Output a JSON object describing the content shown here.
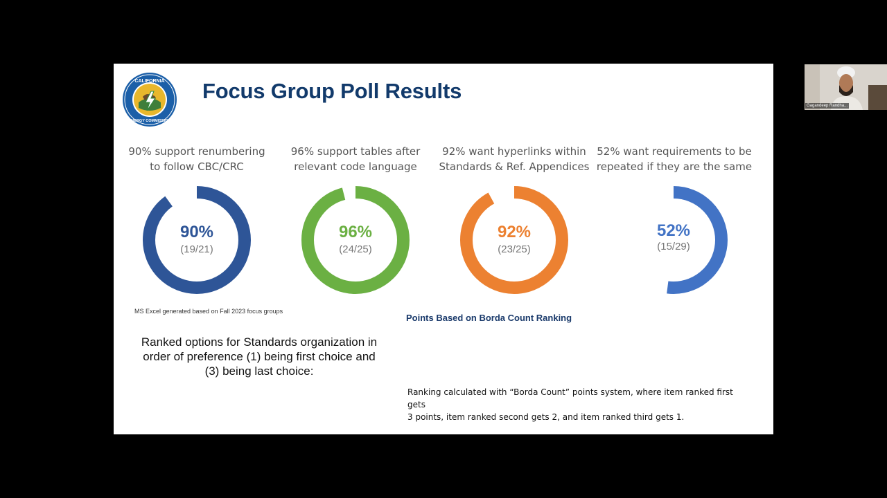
{
  "slide": {
    "title": "Focus Group Poll Results",
    "logo": {
      "icon": "california-energy-commission-seal-icon",
      "top_text": "CALIFORNIA",
      "bottom_text": "ENERGY COMMISSION"
    },
    "polls": [
      {
        "question_line1": "90% support renumbering",
        "question_line2": "to follow CBC/CRC",
        "percent": "90%",
        "fraction": "(19/21)",
        "value": 0.9,
        "color": "#2e5597"
      },
      {
        "question_line1": "96% support tables after",
        "question_line2": "relevant code language",
        "percent": "96%",
        "fraction": "(24/25)",
        "value": 0.96,
        "color": "#6bb043"
      },
      {
        "question_line1": "92% want hyperlinks within",
        "question_line2": "Standards & Ref. Appendices",
        "percent": "92%",
        "fraction": "(23/25)",
        "value": 0.92,
        "color": "#ec8131"
      },
      {
        "question_line1": "52% want requirements to be",
        "question_line2": "repeated if they are the same",
        "percent": "52%",
        "fraction": "(15/29)",
        "value": 0.52,
        "color": "#4273c5"
      }
    ],
    "source_note": "MS Excel generated based on Fall 2023 focus groups",
    "borda_heading": "Points Based on Borda Count Ranking",
    "ranked_line1": "Ranked options for Standards organization in",
    "ranked_line2": "order of preference (1) being first choice and",
    "ranked_line3": "(3) being last choice:",
    "explanation_line1": "Ranking calculated with “Borda Count” points system, where item ranked first gets",
    "explanation_line2": "3 points, item ranked second gets 2, and item ranked third gets 1."
  },
  "webcam": {
    "participant_name": "Gagandeep Randha..."
  }
}
